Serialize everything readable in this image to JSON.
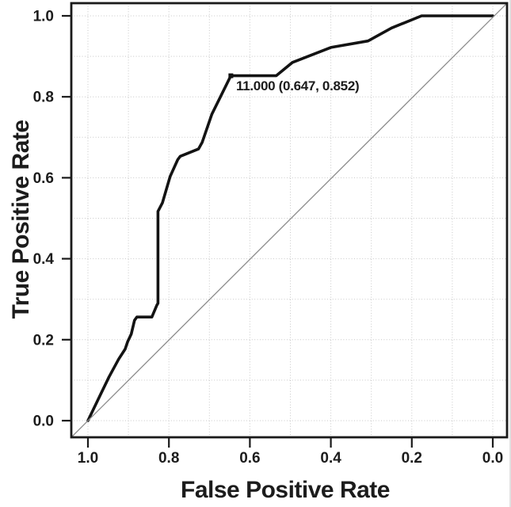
{
  "chart_data": {
    "type": "line",
    "title": "",
    "xlabel": "False Positive Rate",
    "ylabel": "True Positive Rate",
    "x_axis": {
      "min": 0.0,
      "max": 1.0,
      "reversed": true,
      "tick_labels": [
        "1.0",
        "0.8",
        "0.6",
        "0.4",
        "0.2",
        "0.0"
      ],
      "tick_values": [
        1.0,
        0.8,
        0.6,
        0.4,
        0.2,
        0.0
      ],
      "grid_step": 0.1
    },
    "y_axis": {
      "min": 0.0,
      "max": 1.0,
      "tick_labels": [
        "0.0",
        "0.2",
        "0.4",
        "0.6",
        "0.8",
        "1.0"
      ],
      "tick_values": [
        0.0,
        0.2,
        0.4,
        0.6,
        0.8,
        1.0
      ],
      "grid_step": 0.1
    },
    "grid": true,
    "legend": false,
    "series": [
      {
        "name": "roc-curve",
        "color": "#131313",
        "stroke_width": 3.6,
        "points": [
          [
            1.0,
            0.0
          ],
          [
            0.975,
            0.052
          ],
          [
            0.948,
            0.108
          ],
          [
            0.924,
            0.152
          ],
          [
            0.908,
            0.177
          ],
          [
            0.902,
            0.195
          ],
          [
            0.893,
            0.214
          ],
          [
            0.885,
            0.248
          ],
          [
            0.879,
            0.256
          ],
          [
            0.842,
            0.256
          ],
          [
            0.83,
            0.285
          ],
          [
            0.827,
            0.29
          ],
          [
            0.827,
            0.517
          ],
          [
            0.816,
            0.538
          ],
          [
            0.797,
            0.603
          ],
          [
            0.778,
            0.645
          ],
          [
            0.772,
            0.653
          ],
          [
            0.727,
            0.671
          ],
          [
            0.718,
            0.687
          ],
          [
            0.694,
            0.757
          ],
          [
            0.647,
            0.852
          ],
          [
            0.535,
            0.852
          ],
          [
            0.495,
            0.885
          ],
          [
            0.4,
            0.922
          ],
          [
            0.308,
            0.938
          ],
          [
            0.25,
            0.97
          ],
          [
            0.176,
            1.0
          ],
          [
            0.0,
            1.0
          ]
        ]
      },
      {
        "name": "reference-diagonal",
        "color": "#8c8c8c",
        "stroke_width": 1.3,
        "points": [
          [
            1.0,
            0.0
          ],
          [
            0.0,
            1.0
          ]
        ]
      }
    ],
    "annotation": {
      "label": "11.000 (0.647, 0.852)",
      "x": 0.647,
      "y": 0.852,
      "marker": "square"
    }
  },
  "colors": {
    "curve": "#131313",
    "diagonal": "#8c8c8c",
    "grid": "#c7c7c7",
    "border": "#1a1a1a",
    "text": "#1c1c1c",
    "background": "#ffffff",
    "edge_line": "#d9d9d9"
  }
}
